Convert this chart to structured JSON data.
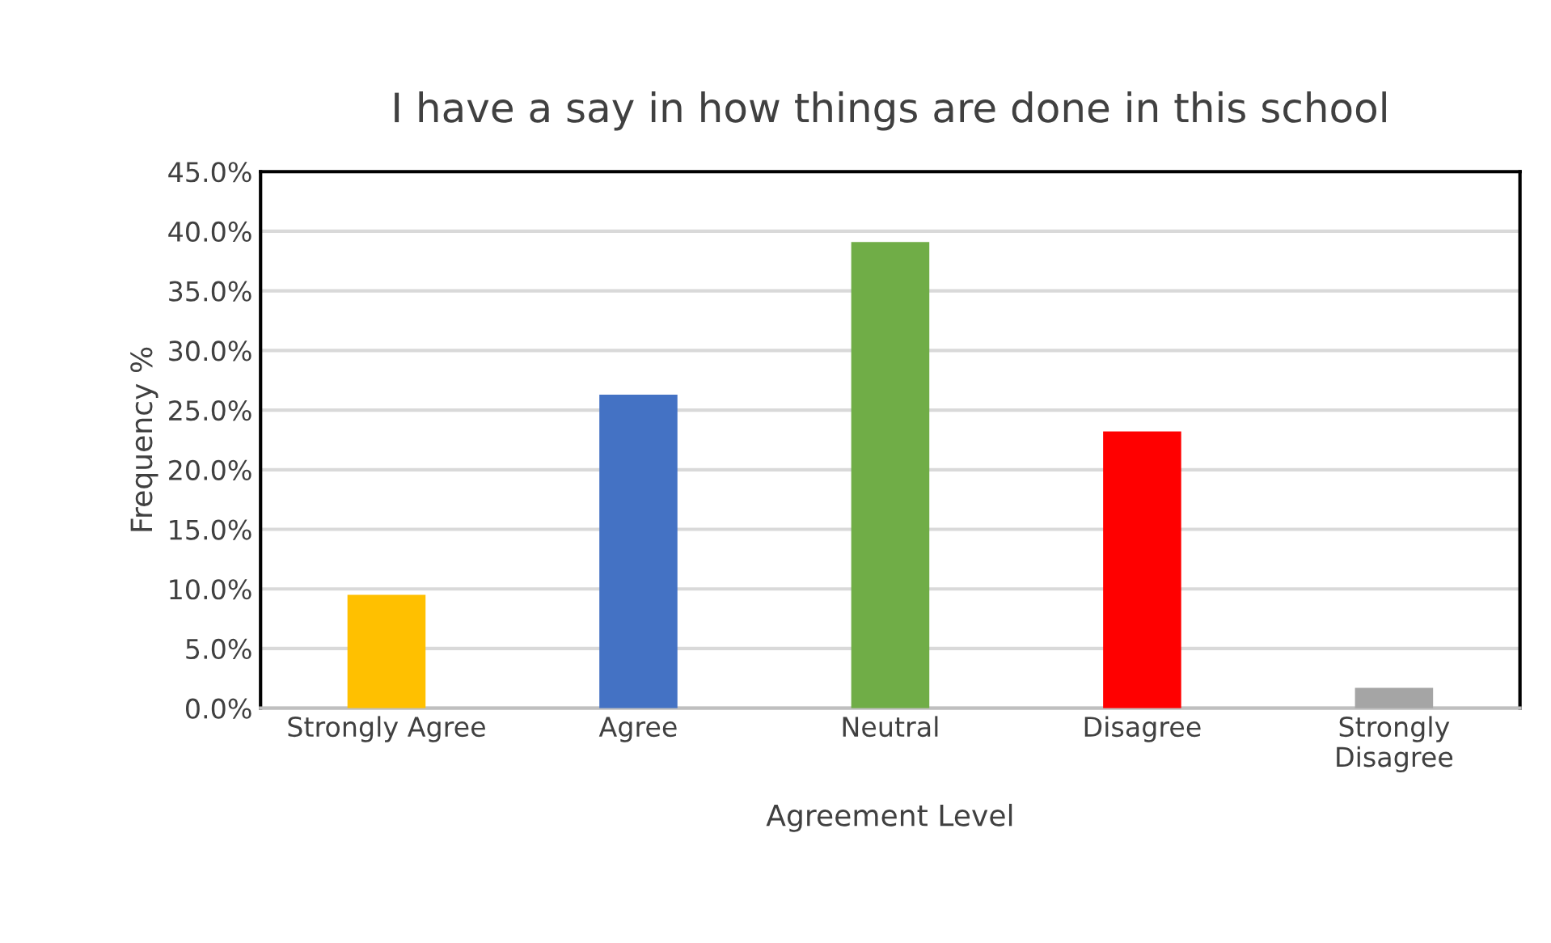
{
  "chart_data": {
    "type": "bar",
    "title": "I have a say in how things are done in this school",
    "xlabel": "Agreement Level",
    "ylabel": "Frequency %",
    "categories": [
      "Strongly Agree",
      "Agree",
      "Neutral",
      "Disagree",
      "Strongly\nDisagree"
    ],
    "values": [
      9.5,
      26.3,
      39.1,
      23.2,
      1.7
    ],
    "colors": [
      "#ffc000",
      "#4472c4",
      "#70ad47",
      "#ff0000",
      "#a5a5a5"
    ],
    "ylim": [
      0,
      45
    ],
    "yticks": [
      {
        "value": 0,
        "label": "0.0%"
      },
      {
        "value": 5,
        "label": "5.0%"
      },
      {
        "value": 10,
        "label": "10.0%"
      },
      {
        "value": 15,
        "label": "15.0%"
      },
      {
        "value": 20,
        "label": "20.0%"
      },
      {
        "value": 25,
        "label": "25.0%"
      },
      {
        "value": 30,
        "label": "30.0%"
      },
      {
        "value": 35,
        "label": "35.0%"
      },
      {
        "value": 40,
        "label": "40.0%"
      },
      {
        "value": 45,
        "label": "45.0%"
      }
    ],
    "grid": "y",
    "legend": false
  }
}
